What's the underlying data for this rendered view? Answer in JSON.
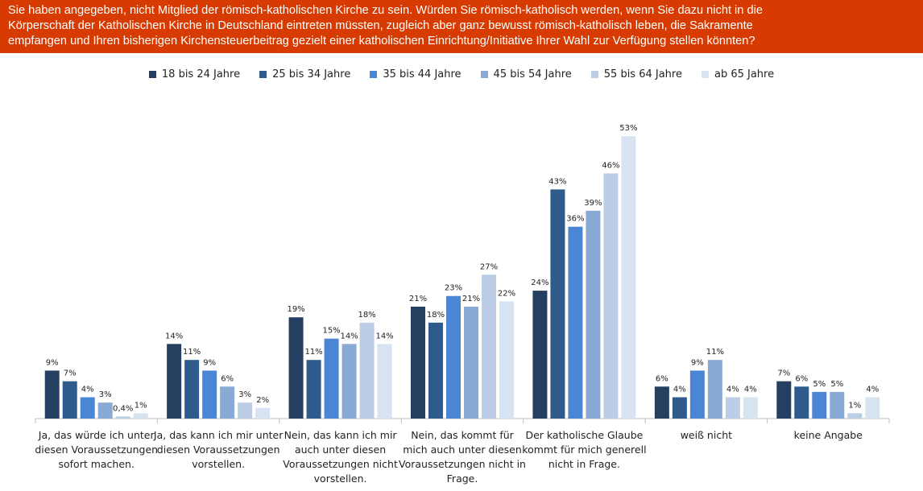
{
  "title": {
    "lines": [
      "Sie haben angegeben, nicht Mitglied der römisch-katholischen Kirche zu sein. Würden Sie römisch-katholisch werden, wenn Sie dazu nicht in die",
      "Körperschaft der Katholischen Kirche in Deutschland eintreten müssten, zugleich aber ganz bewusst römisch-katholisch leben, die Sakramente",
      "empfangen und Ihren bisherigen Kirchensteuerbeitrag gezielt einer katholischen Einrichtung/Initiative Ihrer Wahl zur Verfügung stellen könnten?"
    ]
  },
  "colors": {
    "title_bg": "#d83b01",
    "series": [
      "#243f60",
      "#2e5a8c",
      "#4a86d4",
      "#8aaad6",
      "#bccde6",
      "#d8e3f2"
    ]
  },
  "chart_data": {
    "type": "bar",
    "title": "Sie haben angegeben, nicht Mitglied der römisch-katholischen Kirche zu sein. Würden Sie römisch-katholisch werden, wenn Sie dazu nicht in die Körperschaft der Katholischen Kirche in Deutschland eintreten müssten, zugleich aber ganz bewusst römisch-katholisch leben, die Sakramente empfangen und Ihren bisherigen Kirchensteuerbeitrag gezielt einer katholischen Einrichtung/Initiative Ihrer Wahl zur Verfügung stellen könnten?",
    "xlabel": "",
    "ylabel": "",
    "ylim": [
      0,
      60
    ],
    "grid": false,
    "legend_position": "top-center",
    "categories": [
      [
        "Ja, das würde ich unter",
        "diesen Voraussetzungen",
        "sofort machen."
      ],
      [
        "Ja, das kann ich mir unter",
        "diesen Voraussetzungen",
        "vorstellen."
      ],
      [
        "Nein, das kann ich mir",
        "auch unter diesen",
        "Voraussetzungen nicht",
        "vorstellen."
      ],
      [
        "Nein, das kommt für",
        "mich auch unter diesen",
        "Voraussetzungen nicht in",
        "Frage."
      ],
      [
        "Der katholische Glaube",
        "kommt für mich generell",
        "nicht in Frage."
      ],
      [
        "weiß nicht"
      ],
      [
        "keine Angabe"
      ]
    ],
    "series": [
      {
        "name": "18 bis 24 Jahre",
        "values": [
          9,
          14,
          19,
          21,
          24,
          6,
          7
        ],
        "labels": [
          "9%",
          "14%",
          "19%",
          "21%",
          "24%",
          "6%",
          "7%"
        ]
      },
      {
        "name": "25 bis 34 Jahre",
        "values": [
          7,
          11,
          11,
          18,
          43,
          4,
          6
        ],
        "labels": [
          "7%",
          "11%",
          "11%",
          "18%",
          "43%",
          "4%",
          "6%"
        ]
      },
      {
        "name": "35 bis 44 Jahre",
        "values": [
          4,
          9,
          15,
          23,
          36,
          9,
          5
        ],
        "labels": [
          "4%",
          "9%",
          "15%",
          "23%",
          "36%",
          "9%",
          "5%"
        ]
      },
      {
        "name": "45 bis 54 Jahre",
        "values": [
          3,
          6,
          14,
          21,
          39,
          11,
          5
        ],
        "labels": [
          "3%",
          "6%",
          "14%",
          "21%",
          "39%",
          "11%",
          "5%"
        ]
      },
      {
        "name": "55 bis 64 Jahre",
        "values": [
          0.4,
          3,
          18,
          27,
          46,
          4,
          1
        ],
        "labels": [
          "0,4%",
          "3%",
          "18%",
          "27%",
          "46%",
          "4%",
          "1%"
        ]
      },
      {
        "name": "ab 65 Jahre",
        "values": [
          1,
          2,
          14,
          22,
          53,
          4,
          4
        ],
        "labels": [
          "1%",
          "2%",
          "14%",
          "22%",
          "53%",
          "4%",
          "4%"
        ]
      }
    ]
  }
}
